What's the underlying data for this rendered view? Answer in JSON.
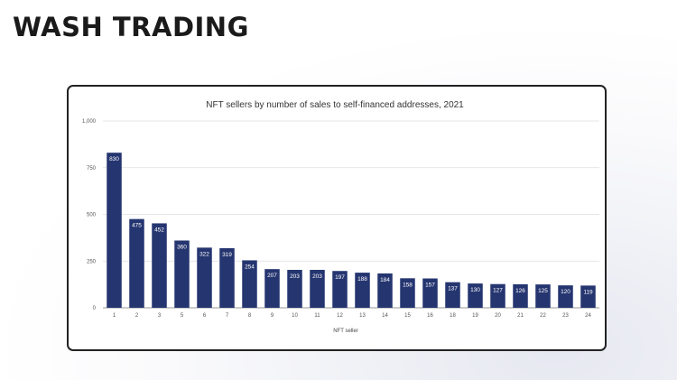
{
  "slide": {
    "title": "WASH TRADING"
  },
  "colors": {
    "bar": "#253570",
    "gridline": "#dedede",
    "background": "#ffffff",
    "border": "#222222"
  },
  "chart_data": {
    "type": "bar",
    "title": "NFT sellers by number of sales to self-financed addresses, 2021",
    "xlabel": "NFT seller",
    "ylabel": "",
    "ylim": [
      0,
      1000
    ],
    "yticks": [
      0,
      250,
      500,
      750,
      1000
    ],
    "ytick_labels": [
      "0",
      "250",
      "500",
      "750",
      "1,000"
    ],
    "grid": true,
    "legend": "none",
    "categories": [
      "1",
      "2",
      "3",
      "5",
      "6",
      "7",
      "8",
      "9",
      "10",
      "11",
      "12",
      "13",
      "14",
      "15",
      "16",
      "18",
      "19",
      "20",
      "21",
      "22",
      "23",
      "24"
    ],
    "values": [
      830,
      475,
      452,
      360,
      322,
      319,
      254,
      207,
      203,
      203,
      197,
      188,
      184,
      158,
      157,
      137,
      130,
      127,
      126,
      125,
      120,
      119
    ],
    "data_labels": true
  }
}
